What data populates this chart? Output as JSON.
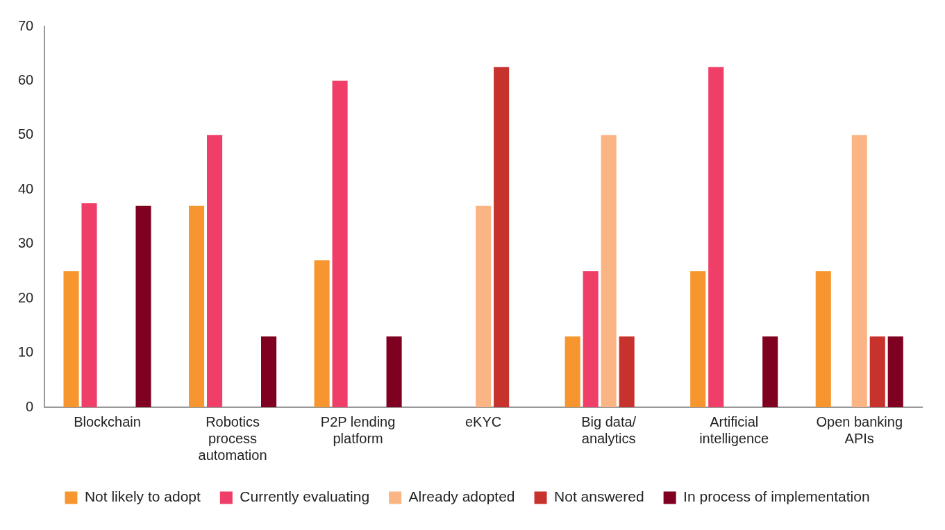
{
  "chart_data": {
    "type": "bar",
    "categories": [
      "Blockchain",
      "Robotics process automation",
      "P2P lending platform",
      "eKYC",
      "Big data/ analytics",
      "Artificial intelligence",
      "Open banking APIs"
    ],
    "series": [
      {
        "name": "Not likely to adopt",
        "color": "#f7962e",
        "values": [
          25,
          37,
          27,
          null,
          13,
          25,
          25
        ]
      },
      {
        "name": "Currently evaluating",
        "color": "#ef3e67",
        "values": [
          37.5,
          50,
          60,
          null,
          25,
          62.5,
          null
        ]
      },
      {
        "name": "Already adopted",
        "color": "#fbb584",
        "values": [
          null,
          null,
          null,
          37,
          50,
          null,
          50
        ]
      },
      {
        "name": "Not answered",
        "color": "#c8322c",
        "values": [
          null,
          null,
          null,
          62.5,
          13,
          null,
          13
        ]
      },
      {
        "name": "In process of implementation",
        "color": "#7f0020",
        "values": [
          37,
          13,
          13,
          null,
          null,
          13,
          13
        ]
      }
    ],
    "ylim": [
      0,
      70
    ],
    "yticks": [
      0,
      10,
      20,
      30,
      40,
      50,
      60,
      70
    ],
    "grid": false,
    "legend": "bottom"
  }
}
